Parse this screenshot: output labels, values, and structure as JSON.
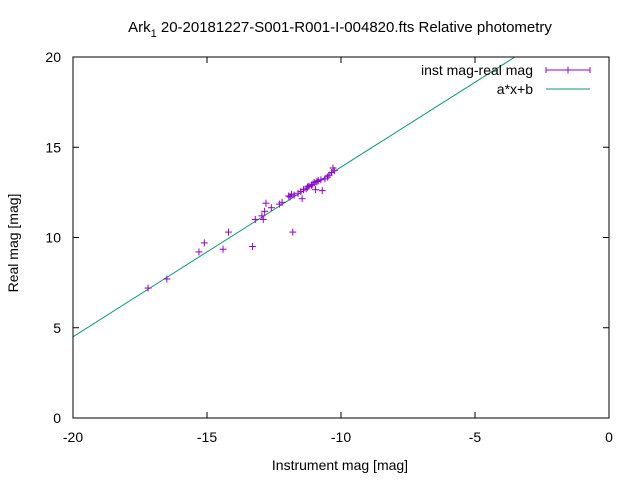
{
  "chart_data": {
    "type": "scatter",
    "title": "Ark₁ 20-20181227-S001-R001-I-004820.fts Relative photometry",
    "title_main": "Ark",
    "title_sub": "1",
    "title_rest": " 20-20181227-S001-R001-I-004820.fts Relative photometry",
    "xlabel": "Instrument mag [mag]",
    "ylabel": "Real mag [mag]",
    "xlim": [
      -20,
      0
    ],
    "ylim": [
      0,
      20
    ],
    "xticks": [
      -20,
      -15,
      -10,
      -5,
      0
    ],
    "yticks": [
      0,
      5,
      10,
      15,
      20
    ],
    "xtick_labels": [
      "-20",
      "-15",
      "-10",
      "-5",
      "0"
    ],
    "ytick_labels": [
      "0",
      "5",
      "10",
      "15",
      "20"
    ],
    "grid": false,
    "legend_position": "top-right",
    "series": [
      {
        "name": "inst mag-real mag",
        "kind": "points",
        "color": "#9400d3",
        "points": [
          [
            -17.2,
            7.2
          ],
          [
            -16.5,
            7.7
          ],
          [
            -15.3,
            9.2
          ],
          [
            -15.1,
            9.7
          ],
          [
            -14.4,
            9.35
          ],
          [
            -14.2,
            10.3
          ],
          [
            -13.3,
            9.5
          ],
          [
            -13.2,
            11.0
          ],
          [
            -12.95,
            11.2
          ],
          [
            -12.9,
            11.0
          ],
          [
            -12.85,
            11.45
          ],
          [
            -12.8,
            11.9
          ],
          [
            -12.6,
            11.65
          ],
          [
            -12.3,
            11.85
          ],
          [
            -12.2,
            11.95
          ],
          [
            -11.95,
            12.3
          ],
          [
            -11.9,
            12.25
          ],
          [
            -11.85,
            12.4
          ],
          [
            -11.8,
            10.3
          ],
          [
            -11.75,
            12.35
          ],
          [
            -11.6,
            12.45
          ],
          [
            -11.5,
            12.55
          ],
          [
            -11.45,
            12.15
          ],
          [
            -11.4,
            12.65
          ],
          [
            -11.3,
            12.7
          ],
          [
            -11.25,
            12.8
          ],
          [
            -11.2,
            12.85
          ],
          [
            -11.1,
            12.9
          ],
          [
            -11.05,
            12.95
          ],
          [
            -11.0,
            13.05
          ],
          [
            -10.95,
            12.65
          ],
          [
            -10.9,
            13.1
          ],
          [
            -10.85,
            13.15
          ],
          [
            -10.75,
            13.2
          ],
          [
            -10.7,
            12.6
          ],
          [
            -10.6,
            13.25
          ],
          [
            -10.5,
            13.35
          ],
          [
            -10.45,
            13.45
          ],
          [
            -10.35,
            13.6
          ],
          [
            -10.3,
            13.85
          ],
          [
            -10.25,
            13.7
          ]
        ]
      },
      {
        "name": "a*x+b",
        "kind": "line",
        "color": "#009e73",
        "slope": 0.94,
        "intercept": 23.3
      }
    ]
  }
}
